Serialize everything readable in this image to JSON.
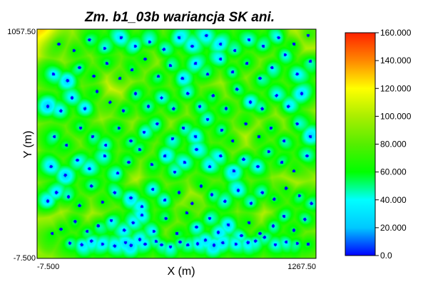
{
  "chart_data": {
    "type": "heatmap",
    "title": "Zm. b1_03b wariancja SK ani.",
    "xlabel": "X (m)",
    "ylabel": "Y (m)",
    "x_tick_labels": [
      "-7.500",
      "1267.50"
    ],
    "y_tick_labels": [
      "1057.50",
      "-7.500"
    ],
    "xlim": [
      -7.5,
      1267.5
    ],
    "ylim": [
      -7.5,
      1057.5
    ],
    "colorbar": {
      "range": [
        0,
        160
      ],
      "tick_labels": [
        "160.000",
        "140.000",
        "120.000",
        "100.000",
        "80.000",
        "60.000",
        "40.000",
        "20.000",
        "0.0"
      ],
      "colors": [
        "#0000ff",
        "#00c8ff",
        "#00ffff",
        "#00ff00",
        "#55ee00",
        "#aaee00",
        "#ffff00",
        "#ff8800",
        "#ff2200"
      ]
    },
    "low_points": [
      [
        140,
        65
      ],
      [
        195,
        58
      ],
      [
        240,
        75
      ],
      [
        290,
        60
      ],
      [
        345,
        52
      ],
      [
        395,
        68
      ],
      [
        420,
        55
      ],
      [
        460,
        82
      ],
      [
        485,
        60
      ],
      [
        535,
        73
      ],
      [
        560,
        57
      ],
      [
        600,
        48
      ],
      [
        645,
        70
      ],
      [
        680,
        56
      ],
      [
        725,
        62
      ],
      [
        760,
        79
      ],
      [
        800,
        55
      ],
      [
        840,
        66
      ],
      [
        900,
        60
      ],
      [
        955,
        68
      ],
      [
        990,
        75
      ],
      [
        1030,
        92
      ],
      [
        1080,
        58
      ],
      [
        1130,
        70
      ],
      [
        1180,
        64
      ],
      [
        1230,
        60
      ],
      [
        60,
        110
      ],
      [
        100,
        130
      ],
      [
        165,
        165
      ],
      [
        220,
        120
      ],
      [
        270,
        145
      ],
      [
        330,
        170
      ],
      [
        390,
        125
      ],
      [
        430,
        160
      ],
      [
        470,
        195
      ],
      [
        525,
        120
      ],
      [
        580,
        180
      ],
      [
        630,
        110
      ],
      [
        675,
        205
      ],
      [
        720,
        140
      ],
      [
        780,
        180
      ],
      [
        820,
        115
      ],
      [
        865,
        150
      ],
      [
        925,
        100
      ],
      [
        960,
        160
      ],
      [
        1010,
        110
      ],
      [
        1070,
        145
      ],
      [
        1120,
        190
      ],
      [
        1165,
        125
      ],
      [
        1215,
        175
      ],
      [
        40,
        260
      ],
      [
        80,
        300
      ],
      [
        135,
        280
      ],
      [
        185,
        240
      ],
      [
        240,
        330
      ],
      [
        290,
        255
      ],
      [
        345,
        300
      ],
      [
        420,
        275
      ],
      [
        470,
        235
      ],
      [
        520,
        315
      ],
      [
        575,
        265
      ],
      [
        640,
        300
      ],
      [
        700,
        250
      ],
      [
        740,
        330
      ],
      [
        790,
        290
      ],
      [
        850,
        260
      ],
      [
        910,
        310
      ],
      [
        970,
        250
      ],
      [
        1020,
        300
      ],
      [
        1075,
        270
      ],
      [
        1130,
        320
      ],
      [
        1190,
        285
      ],
      [
        1245,
        250
      ],
      [
        55,
        420
      ],
      [
        120,
        380
      ],
      [
        175,
        450
      ],
      [
        230,
        410
      ],
      [
        300,
        470
      ],
      [
        360,
        390
      ],
      [
        410,
        440
      ],
      [
        460,
        500
      ],
      [
        515,
        430
      ],
      [
        575,
        470
      ],
      [
        620,
        395
      ],
      [
        665,
        440
      ],
      [
        720,
        500
      ],
      [
        780,
        420
      ],
      [
        830,
        470
      ],
      [
        890,
        400
      ],
      [
        935,
        455
      ],
      [
        1000,
        420
      ],
      [
        1050,
        490
      ],
      [
        1110,
        440
      ],
      [
        1165,
        400
      ],
      [
        1225,
        470
      ],
      [
        70,
        560
      ],
      [
        125,
        520
      ],
      [
        190,
        600
      ],
      [
        245,
        560
      ],
      [
        305,
        520
      ],
      [
        365,
        600
      ],
      [
        420,
        540
      ],
      [
        480,
        580
      ],
      [
        540,
        620
      ],
      [
        610,
        550
      ],
      [
        660,
        600
      ],
      [
        715,
        560
      ],
      [
        770,
        640
      ],
      [
        835,
        590
      ],
      [
        885,
        540
      ],
      [
        945,
        620
      ],
      [
        1005,
        560
      ],
      [
        1060,
        600
      ],
      [
        1120,
        540
      ],
      [
        1180,
        620
      ],
      [
        1240,
        560
      ],
      [
        40,
        700
      ],
      [
        100,
        680
      ],
      [
        150,
        740
      ],
      [
        210,
        690
      ],
      [
        265,
        770
      ],
      [
        325,
        720
      ],
      [
        385,
        680
      ],
      [
        440,
        760
      ],
      [
        500,
        700
      ],
      [
        560,
        740
      ],
      [
        615,
        690
      ],
      [
        680,
        760
      ],
      [
        735,
        700
      ],
      [
        795,
        750
      ],
      [
        855,
        690
      ],
      [
        905,
        780
      ],
      [
        965,
        720
      ],
      [
        1020,
        690
      ],
      [
        1085,
        750
      ],
      [
        1140,
        700
      ],
      [
        1200,
        760
      ],
      [
        65,
        850
      ],
      [
        130,
        820
      ],
      [
        185,
        880
      ],
      [
        250,
        840
      ],
      [
        310,
        900
      ],
      [
        370,
        830
      ],
      [
        425,
        870
      ],
      [
        485,
        920
      ],
      [
        545,
        840
      ],
      [
        600,
        890
      ],
      [
        655,
        830
      ],
      [
        715,
        900
      ],
      [
        770,
        850
      ],
      [
        830,
        920
      ],
      [
        885,
        860
      ],
      [
        950,
        900
      ],
      [
        1010,
        830
      ],
      [
        1065,
        880
      ],
      [
        1125,
        940
      ],
      [
        1180,
        850
      ],
      [
        1240,
        910
      ],
      [
        90,
        990
      ],
      [
        160,
        960
      ],
      [
        230,
        1010
      ],
      [
        300,
        970
      ],
      [
        375,
        1020
      ],
      [
        440,
        980
      ],
      [
        505,
        1000
      ],
      [
        570,
        965
      ],
      [
        640,
        1020
      ],
      [
        700,
        980
      ],
      [
        765,
        1030
      ],
      [
        830,
        990
      ],
      [
        895,
        960
      ],
      [
        960,
        1010
      ],
      [
        1025,
        980
      ],
      [
        1095,
        1020
      ],
      [
        1165,
        990
      ],
      [
        1230,
        1030
      ]
    ],
    "high_points": [
      [
        330,
        800,
        1.0
      ],
      [
        700,
        280,
        0.9
      ],
      [
        920,
        560,
        0.8
      ],
      [
        250,
        230,
        0.75
      ],
      [
        1150,
        360,
        0.85
      ],
      [
        1000,
        180,
        0.7
      ],
      [
        80,
        140,
        0.7
      ],
      [
        520,
        900,
        0.65
      ],
      [
        1220,
        1020,
        1.0
      ],
      [
        40,
        1030,
        0.85
      ],
      [
        820,
        780,
        0.6
      ],
      [
        150,
        560,
        0.55
      ],
      [
        460,
        420,
        0.6
      ],
      [
        620,
        650,
        0.55
      ],
      [
        1080,
        620,
        0.6
      ],
      [
        1230,
        100,
        0.6
      ],
      [
        600,
        120,
        0.5
      ],
      [
        380,
        620,
        0.5
      ],
      [
        980,
        900,
        0.55
      ],
      [
        180,
        960,
        0.5
      ]
    ]
  }
}
